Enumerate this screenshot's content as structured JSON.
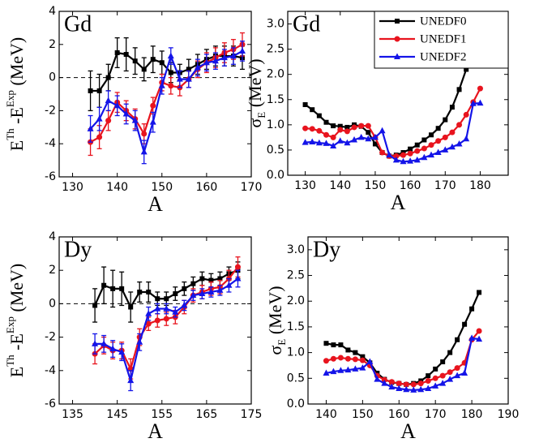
{
  "chart_data": [
    {
      "type": "line",
      "label": "Gd",
      "xlabel": "A",
      "ylabel": [
        {
          "text": "E"
        },
        {
          "text": "Th",
          "shift": "super"
        },
        {
          "text": " -E"
        },
        {
          "text": "Exp",
          "shift": "super"
        },
        {
          "text": " (MeV)"
        }
      ],
      "x": [
        134,
        136,
        138,
        140,
        142,
        144,
        146,
        148,
        150,
        152,
        154,
        156,
        158,
        160,
        162,
        164,
        166,
        168
      ],
      "series": [
        {
          "color": "#000000",
          "marker": "square",
          "values": [
            -0.8,
            -0.8,
            0,
            1.5,
            1.4,
            1.0,
            0.5,
            1.1,
            0.9,
            0.3,
            0.3,
            0.5,
            0.8,
            1.1,
            1.3,
            1.3,
            1.3,
            1.2
          ],
          "errors": [
            1.2,
            1.0,
            0.8,
            0.9,
            1.0,
            0.8,
            0.7,
            0.8,
            0.7,
            0.6,
            0.5,
            0.6,
            0.6,
            0.6,
            0.6,
            0.6,
            0.6,
            0.7
          ]
        },
        {
          "color": "#e8141e",
          "marker": "circle",
          "values": [
            -3.9,
            -3.6,
            -2.6,
            -1.5,
            -2.0,
            -2.5,
            -3.4,
            -1.7,
            -0.3,
            -0.5,
            -0.6,
            -0.1,
            0.5,
            0.9,
            1.2,
            1.5,
            1.7,
            2.0
          ],
          "errors": [
            0.8,
            0.7,
            0.6,
            0.6,
            0.6,
            0.6,
            0.6,
            0.5,
            0.5,
            0.5,
            0.5,
            0.5,
            0.5,
            0.6,
            0.6,
            0.6,
            0.6,
            0.7
          ]
        },
        {
          "color": "#1414e8",
          "marker": "triangle",
          "values": [
            -3.1,
            -2.5,
            -1.4,
            -1.7,
            -2.2,
            -2.6,
            -4.5,
            -2.7,
            -0.5,
            1.3,
            -0.1,
            -0.1,
            0.6,
            0.9,
            1.0,
            1.2,
            1.3,
            1.6
          ],
          "errors": [
            0.8,
            0.7,
            0.6,
            0.6,
            0.6,
            0.6,
            0.7,
            0.6,
            0.5,
            0.5,
            0.5,
            0.5,
            0.5,
            0.5,
            0.5,
            0.5,
            0.5,
            0.6
          ]
        }
      ],
      "xlim": [
        127,
        170
      ],
      "xticks": [
        130,
        140,
        150,
        160,
        170
      ],
      "ylim": [
        -6,
        4
      ],
      "yticks": [
        4,
        2,
        0,
        -2,
        -4,
        -6
      ],
      "reference_line": 0
    },
    {
      "type": "line",
      "label": "Gd",
      "xlabel": "A",
      "ylabel": [
        {
          "text": "σ"
        },
        {
          "text": "E",
          "shift": "sub"
        },
        {
          "text": " (MeV)"
        }
      ],
      "x": [
        130,
        132,
        134,
        136,
        138,
        140,
        142,
        144,
        146,
        148,
        150,
        152,
        154,
        156,
        158,
        160,
        162,
        164,
        166,
        168,
        170,
        172,
        174,
        176,
        178,
        180
      ],
      "series": [
        {
          "name": "UNEDF0",
          "color": "#000000",
          "marker": "square",
          "values": [
            1.4,
            1.3,
            1.18,
            1.05,
            0.98,
            0.97,
            0.95,
            1.0,
            0.97,
            0.85,
            0.62,
            0.45,
            0.38,
            0.4,
            0.45,
            0.52,
            0.6,
            0.7,
            0.8,
            0.93,
            1.1,
            1.35,
            1.7,
            2.1,
            2.5,
            2.92
          ]
        },
        {
          "name": "UNEDF1",
          "color": "#e8141e",
          "marker": "circle",
          "values": [
            0.93,
            0.92,
            0.88,
            0.8,
            0.75,
            0.9,
            0.87,
            0.95,
            0.98,
            0.98,
            0.75,
            0.45,
            0.38,
            0.38,
            0.4,
            0.43,
            0.48,
            0.53,
            0.6,
            0.68,
            0.75,
            0.85,
            1.0,
            1.2,
            1.45,
            1.72
          ]
        },
        {
          "name": "UNEDF2",
          "color": "#1414e8",
          "marker": "triangle",
          "values": [
            0.65,
            0.66,
            0.64,
            0.63,
            0.58,
            0.68,
            0.64,
            0.7,
            0.75,
            0.72,
            0.75,
            0.88,
            0.4,
            0.3,
            0.27,
            0.28,
            0.3,
            0.35,
            0.4,
            0.45,
            0.5,
            0.56,
            0.62,
            0.72,
            1.42,
            1.43
          ]
        }
      ],
      "xlim": [
        125,
        188
      ],
      "xticks": [
        130,
        140,
        150,
        160,
        170,
        180
      ],
      "ylim": [
        0,
        3.25
      ],
      "yticks": [
        {
          "value": 0,
          "label": "0.0"
        },
        0.5,
        {
          "value": 1,
          "label": "1.0"
        },
        1.5,
        {
          "value": 2,
          "label": "2.0"
        },
        2.5,
        {
          "value": 3,
          "label": "3.0"
        }
      ],
      "legend": "upper right"
    },
    {
      "type": "line",
      "label": "Dy",
      "xlabel": "A",
      "ylabel": [
        {
          "text": "E"
        },
        {
          "text": "Th",
          "shift": "super"
        },
        {
          "text": " -E"
        },
        {
          "text": "Exp",
          "shift": "super"
        },
        {
          "text": " (MeV)"
        }
      ],
      "x": [
        140,
        142,
        144,
        146,
        148,
        150,
        152,
        154,
        156,
        158,
        160,
        162,
        164,
        166,
        168,
        170,
        172
      ],
      "series": [
        {
          "color": "#000000",
          "marker": "square",
          "values": [
            -0.1,
            1.1,
            0.9,
            0.9,
            -0.2,
            0.7,
            0.7,
            0.3,
            0.3,
            0.6,
            0.9,
            1.2,
            1.5,
            1.4,
            1.5,
            1.8,
            2.0
          ],
          "errors": [
            1.0,
            1.1,
            1.1,
            1.0,
            0.9,
            0.6,
            0.6,
            0.4,
            0.4,
            0.4,
            0.4,
            0.4,
            0.4,
            0.4,
            0.4,
            0.4,
            0.5
          ]
        },
        {
          "color": "#e8141e",
          "marker": "circle",
          "values": [
            -3.0,
            -2.5,
            -2.8,
            -2.8,
            -3.9,
            -2.0,
            -1.2,
            -1.0,
            -0.9,
            -0.8,
            -0.2,
            0.5,
            0.7,
            0.9,
            1.0,
            1.5,
            2.2
          ],
          "errors": [
            0.6,
            0.5,
            0.5,
            0.5,
            0.6,
            0.5,
            0.4,
            0.4,
            0.4,
            0.4,
            0.4,
            0.4,
            0.4,
            0.4,
            0.4,
            0.5,
            0.6
          ]
        },
        {
          "color": "#1414e8",
          "marker": "triangle",
          "values": [
            -2.4,
            -2.4,
            -2.7,
            -2.9,
            -4.6,
            -2.3,
            -0.6,
            -0.3,
            -0.3,
            -0.5,
            -0.1,
            0.5,
            0.6,
            0.7,
            0.8,
            1.1,
            1.5
          ],
          "errors": [
            0.6,
            0.5,
            0.5,
            0.5,
            0.6,
            0.5,
            0.4,
            0.3,
            0.3,
            0.3,
            0.3,
            0.3,
            0.3,
            0.3,
            0.3,
            0.4,
            0.5
          ]
        }
      ],
      "xlim": [
        132,
        175
      ],
      "xticks": [
        135,
        145,
        155,
        165,
        175
      ],
      "ylim": [
        -6,
        4
      ],
      "yticks": [
        4,
        2,
        0,
        -2,
        -4,
        -6
      ],
      "reference_line": 0
    },
    {
      "type": "line",
      "label": "Dy",
      "xlabel": "A",
      "ylabel": [
        {
          "text": "σ"
        },
        {
          "text": "E",
          "shift": "sub"
        },
        {
          "text": " (MeV)"
        }
      ],
      "x": [
        140,
        142,
        144,
        146,
        148,
        150,
        152,
        154,
        156,
        158,
        160,
        162,
        164,
        166,
        168,
        170,
        172,
        174,
        176,
        178,
        180,
        182
      ],
      "series": [
        {
          "color": "#000000",
          "marker": "square",
          "values": [
            1.18,
            1.15,
            1.15,
            1.05,
            1.0,
            0.92,
            0.8,
            0.6,
            0.48,
            0.42,
            0.4,
            0.38,
            0.4,
            0.45,
            0.55,
            0.68,
            0.82,
            1.0,
            1.25,
            1.55,
            1.85,
            2.17
          ]
        },
        {
          "color": "#e8141e",
          "marker": "circle",
          "values": [
            0.84,
            0.88,
            0.9,
            0.88,
            0.87,
            0.85,
            0.75,
            0.55,
            0.47,
            0.43,
            0.4,
            0.38,
            0.38,
            0.4,
            0.45,
            0.5,
            0.55,
            0.62,
            0.7,
            0.8,
            1.25,
            1.42
          ]
        },
        {
          "color": "#1414e8",
          "marker": "triangle",
          "values": [
            0.6,
            0.63,
            0.65,
            0.66,
            0.68,
            0.7,
            0.82,
            0.48,
            0.4,
            0.33,
            0.3,
            0.28,
            0.27,
            0.28,
            0.3,
            0.35,
            0.4,
            0.48,
            0.55,
            0.6,
            1.28,
            1.26
          ]
        }
      ],
      "xlim": [
        135,
        190
      ],
      "xticks": [
        140,
        150,
        160,
        170,
        180,
        190
      ],
      "ylim": [
        0,
        3.25
      ],
      "yticks": [
        {
          "value": 0,
          "label": "0.0"
        },
        0.5,
        {
          "value": 1,
          "label": "1.0"
        },
        1.5,
        {
          "value": 2,
          "label": "2.0"
        },
        2.5,
        {
          "value": 3,
          "label": "3.0"
        }
      ]
    }
  ]
}
